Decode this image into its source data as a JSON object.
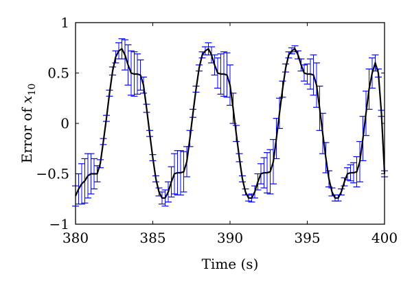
{
  "chart_data": {
    "type": "line",
    "title": "",
    "xlabel": "Time (s)",
    "ylabel_text": "Error of ",
    "ylabel_var": "x",
    "ylabel_sub": "10",
    "xlim": [
      380,
      400
    ],
    "ylim": [
      -1,
      1
    ],
    "xticks": [
      380,
      385,
      390,
      395,
      400
    ],
    "xtick_labels": [
      "380",
      "385",
      "390",
      "395",
      "400"
    ],
    "yticks": [
      -1,
      -0.5,
      0,
      0.5,
      1
    ],
    "ytick_labels": [
      "−1",
      "−0.5",
      "0",
      "0.5",
      "1"
    ],
    "grid": false,
    "legend": "none",
    "colors": {
      "mean_line": "#000000",
      "error_bars": "#0000ff"
    },
    "series": [
      {
        "kind": "mean",
        "x": [
          380.0,
          380.2,
          380.4,
          380.6,
          380.8,
          381.0,
          381.2,
          381.4,
          381.6,
          381.8,
          382.0,
          382.2,
          382.4,
          382.6,
          382.8,
          383.0,
          383.2,
          383.4,
          383.6,
          383.8,
          384.0,
          384.2,
          384.4,
          384.6,
          384.8,
          385.0,
          385.2,
          385.4,
          385.6,
          385.8,
          386.0,
          386.2,
          386.4,
          386.6,
          386.8,
          387.0,
          387.2,
          387.4,
          387.6,
          387.8,
          388.0,
          388.2,
          388.4,
          388.6,
          388.8,
          389.0,
          389.2,
          389.4,
          389.6,
          389.8,
          390.0,
          390.2,
          390.4,
          390.6,
          390.8,
          391.0,
          391.2,
          391.4,
          391.6,
          391.8,
          392.0,
          392.2,
          392.4,
          392.6,
          392.8,
          393.0,
          393.2,
          393.4,
          393.6,
          393.8,
          394.0,
          394.2,
          394.4,
          394.6,
          394.8,
          395.0,
          395.2,
          395.4,
          395.6,
          395.8,
          396.0,
          396.2,
          396.4,
          396.6,
          396.8,
          397.0,
          397.2,
          397.4,
          397.6,
          397.8,
          398.0,
          398.2,
          398.4,
          398.6,
          398.8,
          399.0,
          399.2,
          399.4,
          399.6,
          399.8,
          400.0
        ],
        "y": [
          -0.72,
          -0.65,
          -0.6,
          -0.57,
          -0.52,
          -0.5,
          -0.5,
          -0.5,
          -0.4,
          -0.18,
          0.05,
          0.3,
          0.52,
          0.66,
          0.72,
          0.74,
          0.68,
          0.58,
          0.5,
          0.49,
          0.49,
          0.48,
          0.38,
          0.15,
          -0.1,
          -0.34,
          -0.55,
          -0.68,
          -0.74,
          -0.74,
          -0.68,
          -0.58,
          -0.5,
          -0.49,
          -0.49,
          -0.48,
          -0.38,
          -0.15,
          0.1,
          0.34,
          0.55,
          0.68,
          0.72,
          0.74,
          0.68,
          0.58,
          0.5,
          0.49,
          0.49,
          0.48,
          0.38,
          0.15,
          -0.1,
          -0.34,
          -0.55,
          -0.68,
          -0.74,
          -0.74,
          -0.68,
          -0.58,
          -0.5,
          -0.49,
          -0.49,
          -0.48,
          -0.38,
          -0.15,
          0.1,
          0.34,
          0.55,
          0.68,
          0.72,
          0.74,
          0.68,
          0.58,
          0.5,
          0.49,
          0.49,
          0.48,
          0.38,
          0.15,
          -0.1,
          -0.34,
          -0.55,
          -0.68,
          -0.74,
          -0.74,
          -0.68,
          -0.58,
          -0.5,
          -0.49,
          -0.49,
          -0.48,
          -0.38,
          -0.15,
          0.1,
          0.34,
          0.5,
          0.6,
          0.5,
          0.1,
          -0.5
        ]
      },
      {
        "kind": "error_half_width",
        "values": [
          0.1,
          0.15,
          0.2,
          0.22,
          0.22,
          0.2,
          0.15,
          0.08,
          0.04,
          0.03,
          0.03,
          0.03,
          0.04,
          0.06,
          0.08,
          0.1,
          0.15,
          0.2,
          0.22,
          0.22,
          0.2,
          0.15,
          0.08,
          0.04,
          0.03,
          0.03,
          0.03,
          0.04,
          0.06,
          0.08,
          0.1,
          0.15,
          0.2,
          0.22,
          0.22,
          0.2,
          0.15,
          0.08,
          0.04,
          0.03,
          0.03,
          0.03,
          0.04,
          0.06,
          0.08,
          0.1,
          0.15,
          0.2,
          0.22,
          0.22,
          0.2,
          0.15,
          0.08,
          0.04,
          0.03,
          0.03,
          0.03,
          0.04,
          0.06,
          0.08,
          0.1,
          0.15,
          0.2,
          0.22,
          0.22,
          0.2,
          0.15,
          0.08,
          0.04,
          0.03,
          0.03,
          0.03,
          0.04,
          0.06,
          0.08,
          0.1,
          0.15,
          0.2,
          0.22,
          0.22,
          0.2,
          0.15,
          0.08,
          0.04,
          0.03,
          0.03,
          0.03,
          0.04,
          0.06,
          0.08,
          0.1,
          0.15,
          0.2,
          0.22,
          0.22,
          0.2,
          0.15,
          0.08,
          0.04,
          0.03,
          0.03
        ]
      }
    ]
  }
}
